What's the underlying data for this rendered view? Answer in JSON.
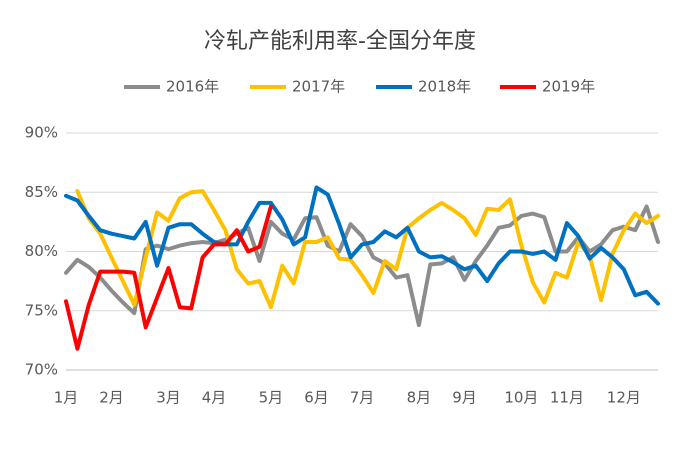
{
  "chart_data": {
    "type": "line",
    "title": "冷轧产能利用率-全国分年度",
    "categories": [
      "1月",
      null,
      null,
      null,
      "2月",
      null,
      null,
      null,
      null,
      "3月",
      null,
      null,
      null,
      "4月",
      null,
      null,
      null,
      null,
      "5月",
      null,
      null,
      null,
      "6月",
      null,
      null,
      null,
      "7月",
      null,
      null,
      null,
      null,
      "8月",
      null,
      null,
      null,
      "9月",
      null,
      null,
      null,
      null,
      "10月",
      null,
      null,
      null,
      "11月",
      null,
      null,
      null,
      null,
      "12月",
      null,
      null,
      null
    ],
    "series": [
      {
        "name": "2016年",
        "color": "#8c8c8c",
        "values": [
          78.2,
          79.3,
          78.7,
          77.8,
          76.7,
          75.7,
          74.8,
          80.2,
          80.5,
          80.2,
          80.5,
          80.7,
          80.8,
          80.7,
          81,
          81.5,
          82,
          79.2,
          82.5,
          81.5,
          81,
          82.8,
          82.9,
          80.5,
          80,
          82.3,
          81.3,
          79.5,
          79,
          77.8,
          78,
          73.8,
          78.9,
          79,
          79.5,
          77.6,
          79.2,
          80.5,
          82,
          82.2,
          83,
          83.2,
          82.9,
          80,
          80,
          81.2,
          80,
          80.6,
          81.8,
          82.1,
          81.8,
          83.8,
          80.8
        ]
      },
      {
        "name": "2017年",
        "color": "#ffc000",
        "values": [
          null,
          85.1,
          82.8,
          81.5,
          79.5,
          77.5,
          75.5,
          79.5,
          83.3,
          82.6,
          84.5,
          85,
          85.1,
          83.5,
          81.8,
          78.5,
          77.3,
          77.5,
          75.3,
          78.8,
          77.3,
          80.8,
          80.8,
          81.2,
          79.4,
          79.3,
          78,
          76.5,
          79.2,
          78.5,
          82,
          82.8,
          83.5,
          84.1,
          83.5,
          82.8,
          81.4,
          83.6,
          83.5,
          84.4,
          80.5,
          77.4,
          75.7,
          78.2,
          77.8,
          80.8,
          79.6,
          75.9,
          79.8,
          81.8,
          83.2,
          82.4,
          83
        ]
      },
      {
        "name": "2018年",
        "color": "#0070c0",
        "values": [
          84.7,
          84.3,
          83,
          81.8,
          81.5,
          81.3,
          81.1,
          82.5,
          78.8,
          82,
          82.3,
          82.3,
          81.5,
          80.8,
          80.6,
          80.6,
          82.5,
          84.1,
          84.1,
          82.7,
          80.6,
          81.2,
          85.4,
          84.8,
          82.3,
          79.5,
          80.6,
          80.8,
          81.7,
          81.2,
          82,
          80,
          79.5,
          79.6,
          79.1,
          78.5,
          78.8,
          77.5,
          79,
          80,
          80,
          79.8,
          80,
          79.3,
          82.4,
          81.3,
          79.4,
          80.3,
          79.5,
          78.5,
          76.3,
          76.6,
          75.6
        ]
      },
      {
        "name": "2019年",
        "color": "#ff0000",
        "values": [
          75.8,
          71.8,
          75.5,
          78.3,
          78.3,
          78.3,
          78.2,
          73.6,
          76.1,
          78.6,
          75.3,
          75.2,
          79.5,
          80.6,
          80.6,
          81.8,
          80,
          80.4,
          83.8,
          null,
          null,
          null,
          null,
          null,
          null,
          null,
          null,
          null,
          null,
          null,
          null,
          null,
          null,
          null,
          null,
          null,
          null,
          null,
          null,
          null,
          null,
          null,
          null,
          null,
          null,
          null,
          null,
          null,
          null,
          null,
          null,
          null,
          null
        ]
      }
    ],
    "ylim": [
      70,
      90
    ],
    "yticks": [
      {
        "value": 70,
        "label": "70%"
      },
      {
        "value": 75,
        "label": "75%"
      },
      {
        "value": 80,
        "label": "80%"
      },
      {
        "value": 85,
        "label": "85%"
      },
      {
        "value": 90,
        "label": "90%"
      }
    ],
    "grid": true,
    "legend": "top"
  }
}
